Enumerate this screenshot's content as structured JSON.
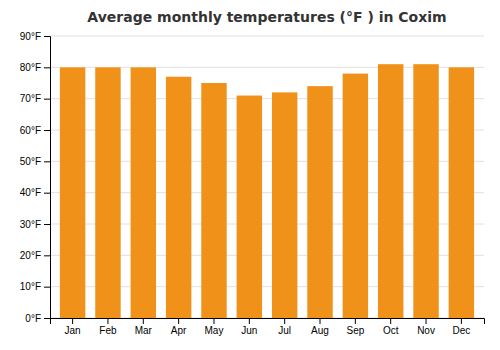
{
  "chart_data": {
    "type": "bar",
    "title": "Average monthly temperatures (°F ) in Coxim",
    "categories": [
      "Jan",
      "Feb",
      "Mar",
      "Apr",
      "May",
      "Jun",
      "Jul",
      "Aug",
      "Sep",
      "Oct",
      "Nov",
      "Dec"
    ],
    "values": [
      80,
      80,
      80,
      77,
      75,
      71,
      72,
      74,
      78,
      81,
      81,
      80
    ],
    "color": "#F0921A",
    "ylim": [
      0,
      90
    ],
    "yticks": [
      {
        "value": 0,
        "label": "0°F"
      },
      {
        "value": 10,
        "label": "10°F"
      },
      {
        "value": 20,
        "label": "20°F"
      },
      {
        "value": 30,
        "label": "30°F"
      },
      {
        "value": 40,
        "label": "40°F"
      },
      {
        "value": 50,
        "label": "50°F"
      },
      {
        "value": 60,
        "label": "60°F"
      },
      {
        "value": 70,
        "label": "70°F"
      },
      {
        "value": 80,
        "label": "80°F"
      },
      {
        "value": 90,
        "label": "90°F"
      }
    ],
    "grid": true
  }
}
